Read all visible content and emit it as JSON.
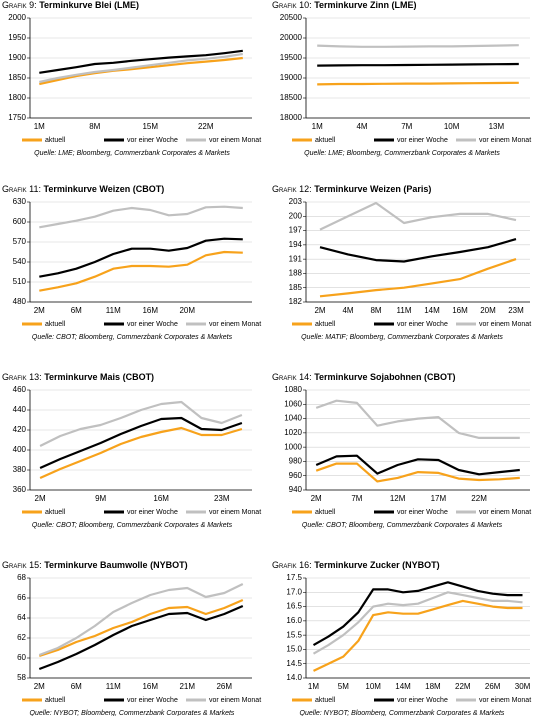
{
  "chart_data": [
    {
      "type": "line",
      "label": "Grafik 9:",
      "title": "Terminkurve Blei (LME)",
      "source": "Quelle: LME; Bloomberg, Commerzbank Corporates & Markets",
      "categories": [
        "1M",
        null,
        null,
        "8M",
        null,
        null,
        "15M",
        null,
        null,
        "22M",
        null,
        null
      ],
      "series": [
        {
          "name": "aktuell",
          "color": "#f7a21b",
          "values": [
            1835,
            1845,
            1855,
            1862,
            1868,
            1872,
            1877,
            1882,
            1887,
            1891,
            1895,
            1900
          ]
        },
        {
          "name": "vor einer Woche",
          "color": "#000000",
          "values": [
            1863,
            1870,
            1877,
            1885,
            1888,
            1893,
            1897,
            1901,
            1904,
            1907,
            1912,
            1918
          ]
        },
        {
          "name": "vor einem Monat",
          "color": "#c0c0c0",
          "values": [
            1840,
            1850,
            1858,
            1865,
            1870,
            1876,
            1882,
            1888,
            1894,
            1898,
            1903,
            1910
          ]
        }
      ],
      "ylim": [
        1750,
        2000
      ],
      "yticks": [
        1750,
        1800,
        1850,
        1900,
        1950,
        2000
      ]
    },
    {
      "type": "line",
      "label": "Grafik 10:",
      "title": "Terminkurve Zinn (LME)",
      "source": "Quelle: LME; Bloomberg, Commerzbank Corporates & Markets",
      "categories": [
        "1M",
        null,
        "4M",
        null,
        "7M",
        null,
        "10M",
        null,
        "13M",
        null
      ],
      "series": [
        {
          "name": "aktuell",
          "color": "#f7a21b",
          "values": [
            18840,
            18850,
            18850,
            18855,
            18860,
            18860,
            18865,
            18870,
            18875,
            18880
          ]
        },
        {
          "name": "vor einer Woche",
          "color": "#000000",
          "values": [
            19310,
            19315,
            19320,
            19320,
            19325,
            19330,
            19335,
            19340,
            19345,
            19350
          ]
        },
        {
          "name": "vor einem Monat",
          "color": "#c0c0c0",
          "values": [
            19810,
            19790,
            19780,
            19780,
            19785,
            19790,
            19790,
            19800,
            19810,
            19820
          ]
        }
      ],
      "ylim": [
        18000,
        20500
      ],
      "yticks": [
        18000,
        18500,
        19000,
        19500,
        20000,
        20500
      ]
    },
    {
      "type": "line",
      "label": "Grafik 11:",
      "title": "Terminkurve Weizen (CBOT)",
      "source": "Quelle: CBOT; Bloomberg, Commerzbank Corporates & Markets",
      "categories": [
        "2M",
        null,
        "6M",
        null,
        "11M",
        null,
        "16M",
        null,
        "20M",
        null,
        null,
        null
      ],
      "series": [
        {
          "name": "aktuell",
          "color": "#f7a21b",
          "values": [
            497,
            502,
            508,
            518,
            530,
            534,
            534,
            533,
            536,
            550,
            555,
            554
          ]
        },
        {
          "name": "vor einer Woche",
          "color": "#000000",
          "values": [
            518,
            523,
            530,
            540,
            552,
            560,
            560,
            557,
            561,
            572,
            575,
            574
          ]
        },
        {
          "name": "vor einem Monat",
          "color": "#c0c0c0",
          "values": [
            592,
            597,
            602,
            608,
            617,
            621,
            618,
            610,
            612,
            622,
            623,
            621
          ]
        }
      ],
      "ylim": [
        480,
        630
      ],
      "yticks": [
        480,
        510,
        540,
        570,
        600,
        630
      ]
    },
    {
      "type": "line",
      "label": "Grafik 12:",
      "title": "Terminkurve Weizen (Paris)",
      "source": "Quelle: MATIF; Bloomberg, Commerzbank Corporates & Markets",
      "categories": [
        "2M",
        "4M",
        "8M",
        "11M",
        "14M",
        "16M",
        "20M",
        "23M"
      ],
      "series": [
        {
          "name": "aktuell",
          "color": "#f7a21b",
          "values": [
            183.2,
            183.8,
            184.5,
            185,
            185.9,
            186.8,
            189,
            191
          ]
        },
        {
          "name": "vor einer Woche",
          "color": "#000000",
          "values": [
            193.5,
            192,
            190.8,
            190.5,
            191.6,
            192.5,
            193.5,
            195.2
          ]
        },
        {
          "name": "vor einem Monat",
          "color": "#c0c0c0",
          "values": [
            197.2,
            200,
            202.8,
            198.6,
            199.8,
            200.5,
            200.5,
            199.2
          ]
        }
      ],
      "ylim": [
        182,
        203
      ],
      "yticks": [
        182,
        185,
        188,
        191,
        194,
        197,
        200,
        203
      ]
    },
    {
      "type": "line",
      "label": "Grafik 13:",
      "title": "Terminkurve Mais (CBOT)",
      "source": "Quelle: CBOT; Bloomberg, Commerzbank Corporates & Markets",
      "categories": [
        "2M",
        null,
        null,
        "9M",
        null,
        null,
        "16M",
        null,
        null,
        "23M",
        null
      ],
      "series": [
        {
          "name": "aktuell",
          "color": "#f7a21b",
          "values": [
            372,
            381,
            389,
            397,
            406,
            413,
            418,
            422,
            415,
            415,
            421
          ]
        },
        {
          "name": "vor einer Woche",
          "color": "#000000",
          "values": [
            382,
            391,
            399,
            407,
            416,
            424,
            431,
            432,
            421,
            420,
            427
          ]
        },
        {
          "name": "vor einem Monat",
          "color": "#c0c0c0",
          "values": [
            404,
            414,
            421,
            425,
            432,
            440,
            446,
            448,
            432,
            427,
            435
          ]
        }
      ],
      "ylim": [
        360,
        460
      ],
      "yticks": [
        360,
        380,
        400,
        420,
        440,
        460
      ]
    },
    {
      "type": "line",
      "label": "Grafik 14:",
      "title": "Terminkurve Sojabohnen (CBOT)",
      "source": "Quelle: CBOT; Bloomberg, Commerzbank Corporates & Markets",
      "categories": [
        "2M",
        null,
        "7M",
        null,
        "12M",
        null,
        "17M",
        null,
        "22M",
        null,
        null
      ],
      "series": [
        {
          "name": "aktuell",
          "color": "#f7a21b",
          "values": [
            967,
            977,
            977,
            952,
            957,
            965,
            964,
            956,
            954,
            955,
            957
          ]
        },
        {
          "name": "vor einer Woche",
          "color": "#000000",
          "values": [
            975,
            987,
            988,
            963,
            975,
            983,
            982,
            968,
            962,
            965,
            968
          ]
        },
        {
          "name": "vor einem Monat",
          "color": "#c0c0c0",
          "values": [
            1055,
            1065,
            1062,
            1030,
            1036,
            1040,
            1042,
            1020,
            1013,
            1013,
            1013
          ]
        }
      ],
      "ylim": [
        940,
        1080
      ],
      "yticks": [
        940,
        960,
        980,
        1000,
        1020,
        1040,
        1060,
        1080
      ]
    },
    {
      "type": "line",
      "label": "Grafik 15:",
      "title": "Terminkurve Baumwolle (NYBOT)",
      "source": "Quelle: NYBOT; Bloomberg, Commerzbank Corporates & Markets",
      "categories": [
        "2M",
        null,
        "6M",
        null,
        "11M",
        null,
        "16M",
        null,
        "21M",
        null,
        "26M",
        null
      ],
      "series": [
        {
          "name": "aktuell",
          "color": "#f7a21b",
          "values": [
            60.2,
            60.8,
            61.6,
            62.2,
            63,
            63.6,
            64.4,
            65,
            65.1,
            64.4,
            65,
            65.8
          ]
        },
        {
          "name": "vor einer Woche",
          "color": "#000000",
          "values": [
            58.9,
            59.6,
            60.4,
            61.3,
            62.3,
            63.2,
            63.8,
            64.4,
            64.5,
            63.8,
            64.4,
            65.2
          ]
        },
        {
          "name": "vor einem Monat",
          "color": "#c0c0c0",
          "values": [
            60.3,
            61,
            62,
            63.2,
            64.6,
            65.5,
            66.3,
            66.8,
            67,
            66.1,
            66.5,
            67.4
          ]
        }
      ],
      "ylim": [
        58,
        68
      ],
      "yticks": [
        58,
        60,
        62,
        64,
        66,
        68
      ]
    },
    {
      "type": "line",
      "label": "Grafik 16:",
      "title": "Terminkurve Zucker (NYBOT)",
      "source": "Quelle: NYBOT; Bloomberg, Commerzbank Corporates & Markets",
      "categories": [
        "1M",
        null,
        "5M",
        null,
        "10M",
        null,
        "14M",
        null,
        "18M",
        null,
        "22M",
        null,
        "26M",
        null,
        "30M"
      ],
      "series": [
        {
          "name": "aktuell",
          "color": "#f7a21b",
          "values": [
            14.25,
            14.5,
            14.75,
            15.3,
            16.2,
            16.3,
            16.25,
            16.25,
            16.4,
            16.55,
            16.7,
            16.6,
            16.5,
            16.45,
            16.45
          ]
        },
        {
          "name": "vor einer Woche",
          "color": "#000000",
          "values": [
            15.15,
            15.45,
            15.8,
            16.3,
            17.1,
            17.1,
            17.0,
            17.05,
            17.2,
            17.35,
            17.2,
            17.05,
            16.95,
            16.9,
            16.9
          ]
        },
        {
          "name": "vor einem Monat",
          "color": "#c0c0c0",
          "values": [
            14.85,
            15.15,
            15.5,
            15.95,
            16.5,
            16.6,
            16.55,
            16.6,
            16.8,
            17.0,
            16.9,
            16.8,
            16.7,
            16.7,
            16.65
          ]
        }
      ],
      "ylim": [
        14,
        17.5
      ],
      "yticks": [
        {
          "value": 14,
          "label": "14.0"
        },
        {
          "value": 14.5,
          "label": "14.5"
        },
        {
          "value": 15,
          "label": "15.0"
        },
        {
          "value": 15.5,
          "label": "15.5"
        },
        {
          "value": 16,
          "label": "16.0"
        },
        {
          "value": 16.5,
          "label": "16.5"
        },
        {
          "value": 17,
          "label": "17.0"
        },
        {
          "value": 17.5,
          "label": "17.5"
        }
      ]
    }
  ]
}
